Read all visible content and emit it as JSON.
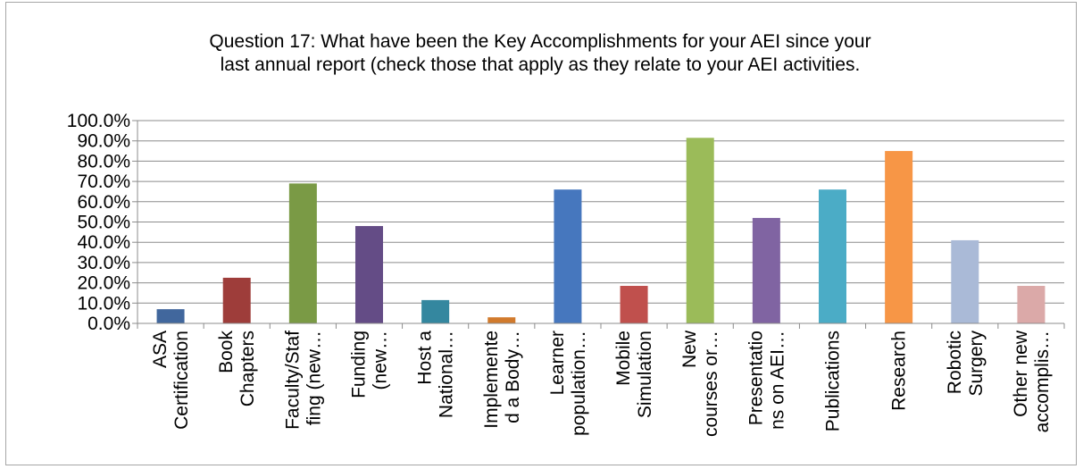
{
  "chart_data": {
    "type": "bar",
    "title_lines": [
      "Question 17:  What have been the Key Accomplishments for your AEI since your",
      "last annual report (check those that apply as they relate to your AEI activities."
    ],
    "categories": [
      [
        "ASA",
        "Certification"
      ],
      [
        "Book",
        "Chapters"
      ],
      [
        "Faculty/Staf",
        "fing (new…"
      ],
      [
        "Funding",
        "(new…"
      ],
      [
        "Host a",
        "National…"
      ],
      [
        "Implemente",
        "d a Body…"
      ],
      [
        "Learner",
        "population…"
      ],
      [
        "Mobile",
        "Simulation"
      ],
      [
        "New",
        "courses or…"
      ],
      [
        "Presentatio",
        "ns on AEI…"
      ],
      [
        "Publications"
      ],
      [
        "Research"
      ],
      [
        "Robotic",
        "Surgery"
      ],
      [
        "Other new",
        "accomplis…"
      ]
    ],
    "values": [
      7.0,
      22.5,
      69.0,
      48.0,
      11.5,
      3.0,
      66.0,
      18.5,
      91.5,
      52.0,
      66.0,
      85.0,
      41.0,
      18.5
    ],
    "colors": [
      "#41679d",
      "#9e3d3a",
      "#7a9a45",
      "#644c86",
      "#34879f",
      "#d17a2c",
      "#4677be",
      "#c0504d",
      "#9bbb59",
      "#8064a2",
      "#4bacc6",
      "#f79646",
      "#aabad7",
      "#dba9a8"
    ],
    "yticks": [
      "0.0%",
      "10.0%",
      "20.0%",
      "30.0%",
      "40.0%",
      "50.0%",
      "60.0%",
      "70.0%",
      "80.0%",
      "90.0%",
      "100.0%"
    ],
    "ylim": [
      0,
      100
    ],
    "grid": true,
    "legend": "none"
  }
}
